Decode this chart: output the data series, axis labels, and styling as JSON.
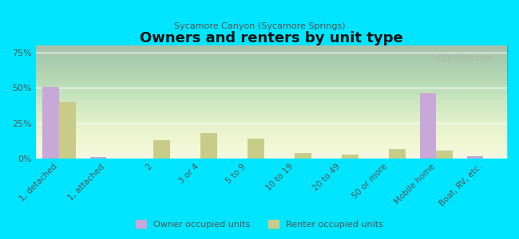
{
  "title": "Owners and renters by unit type",
  "subtitle": "Sycamore Canyon (Sycamore Springs)",
  "categories": [
    "1, detached",
    "1, attached",
    "2",
    "3 or 4",
    "5 to 9",
    "10 to 19",
    "20 to 49",
    "50 or more",
    "Mobile home",
    "Boat, RV, etc."
  ],
  "owner_values": [
    51,
    1,
    0,
    0,
    0,
    0,
    0,
    0,
    46,
    2
  ],
  "renter_values": [
    40,
    0,
    13,
    18,
    14,
    4,
    3,
    7,
    6,
    0
  ],
  "owner_color": "#c8a8d8",
  "renter_color": "#c8cc88",
  "background_color": "#00e5ff",
  "plot_bg_top": "#e8f0d0",
  "plot_bg_bottom": "#f5f8e8",
  "ylim": [
    0,
    80
  ],
  "yticks": [
    0,
    25,
    50,
    75
  ],
  "ytick_labels": [
    "0%",
    "25%",
    "50%",
    "75%"
  ],
  "bar_width": 0.35,
  "legend_owner": "Owner occupied units",
  "legend_renter": "Renter occupied units",
  "watermark": "City-Data.com"
}
